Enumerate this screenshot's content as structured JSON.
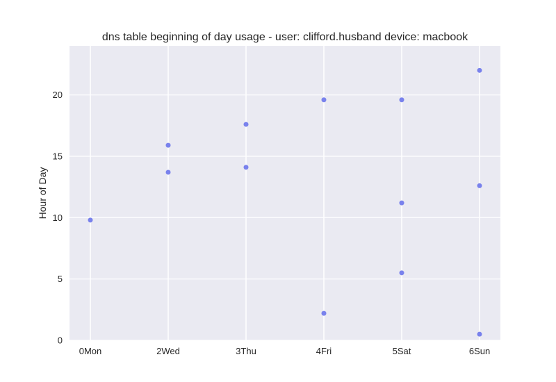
{
  "chart_data": {
    "type": "scatter",
    "title": "dns table beginning of day usage -  user: clifford.husband device: macbook",
    "xlabel": "",
    "ylabel": "Hour of Day",
    "categories": [
      "0Mon",
      "2Wed",
      "3Thu",
      "4Fri",
      "5Sat",
      "6Sun"
    ],
    "ylim": [
      0,
      24
    ],
    "yticks": [
      0,
      5,
      10,
      15,
      20
    ],
    "grid": true,
    "colors": {
      "plot_background": "#eaeaf2",
      "grid": "#ffffff",
      "point": "#6c75eb"
    },
    "series": [
      {
        "points": [
          {
            "x": "0Mon",
            "y": 9.8
          },
          {
            "x": "2Wed",
            "y": 15.9
          },
          {
            "x": "2Wed",
            "y": 13.7
          },
          {
            "x": "3Thu",
            "y": 17.6
          },
          {
            "x": "3Thu",
            "y": 14.1
          },
          {
            "x": "4Fri",
            "y": 19.6
          },
          {
            "x": "4Fri",
            "y": 2.2
          },
          {
            "x": "5Sat",
            "y": 19.6
          },
          {
            "x": "5Sat",
            "y": 11.2
          },
          {
            "x": "5Sat",
            "y": 5.5
          },
          {
            "x": "6Sun",
            "y": 22.0
          },
          {
            "x": "6Sun",
            "y": 12.6
          },
          {
            "x": "6Sun",
            "y": 0.5
          }
        ]
      }
    ]
  }
}
